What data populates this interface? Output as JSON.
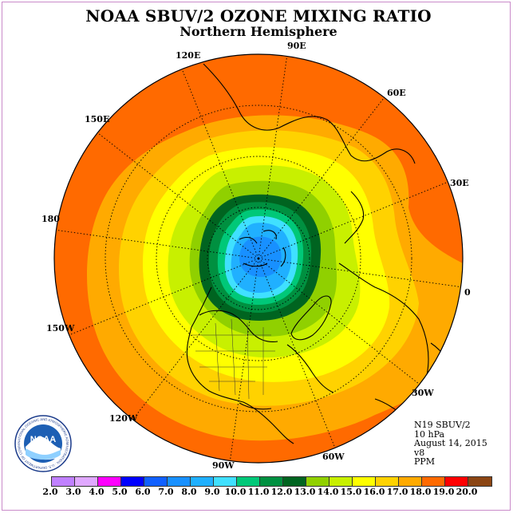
{
  "title": "NOAA SBUV/2 OZONE MIXING RATIO",
  "subtitle": "Northern Hemisphere",
  "longitude_labels": {
    "e90": "90E",
    "e60": "60E",
    "e30": "30E",
    "zero": "0",
    "w30": "30W",
    "w60": "60W",
    "w90": "90W",
    "w120": "120W",
    "w150": "150W",
    "lon180": "180",
    "e150": "150E",
    "e120": "120E"
  },
  "info": {
    "instrument": "N19 SBUV/2",
    "level": "10 hPa",
    "date": "August 14, 2015",
    "version": "v8",
    "units": "PPM"
  },
  "colorbar": {
    "ticks": [
      "2.0",
      "3.0",
      "4.0",
      "5.0",
      "6.0",
      "7.0",
      "8.0",
      "9.0",
      "10.0",
      "11.0",
      "12.0",
      "13.0",
      "14.0",
      "15.0",
      "16.0",
      "17.0",
      "18.0",
      "19.0",
      "20.0"
    ],
    "colors": [
      "#c080ff",
      "#e0a8ff",
      "#ff00ff",
      "#0000ff",
      "#1060ff",
      "#1890ff",
      "#20b0ff",
      "#40e0ff",
      "#00c878",
      "#009040",
      "#006420",
      "#90d000",
      "#c8f000",
      "#ffff00",
      "#ffd200",
      "#ffaa00",
      "#ff6a00",
      "#ff0000",
      "#8b4513"
    ]
  },
  "logo": {
    "text": "NOAA",
    "ring_text": "NATIONAL OCEANIC AND ATMOSPHERIC ADMINISTRATION · U.S. DEPARTMENT OF COMMERCE"
  },
  "map_colors": {
    "c18": "#ff6a00",
    "c17": "#ffaa00",
    "c16": "#ffd200",
    "c15": "#ffff00",
    "c14": "#c8f000",
    "c13": "#90d000",
    "c12": "#006420",
    "c11": "#009040",
    "c10": "#00c878",
    "c9": "#40e0ff",
    "c8": "#20b0ff",
    "c7": "#1890ff"
  }
}
